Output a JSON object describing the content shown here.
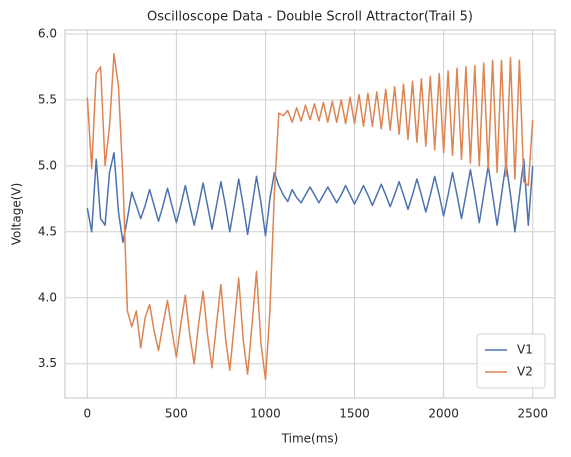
{
  "chart_data": {
    "type": "line",
    "title": "Oscilloscope Data - Double Scroll Attractor(Trail 5)",
    "xlabel": "Time(ms)",
    "ylabel": "Voltage(V)",
    "x": [
      0,
      25,
      50,
      75,
      100,
      125,
      150,
      175,
      200,
      225,
      250,
      275,
      300,
      325,
      350,
      375,
      400,
      425,
      450,
      475,
      500,
      525,
      550,
      575,
      600,
      625,
      650,
      675,
      700,
      725,
      750,
      775,
      800,
      825,
      850,
      875,
      900,
      925,
      950,
      975,
      1000,
      1025,
      1050,
      1075,
      1100,
      1125,
      1150,
      1175,
      1200,
      1225,
      1250,
      1275,
      1300,
      1325,
      1350,
      1375,
      1400,
      1425,
      1450,
      1475,
      1500,
      1525,
      1550,
      1575,
      1600,
      1625,
      1650,
      1675,
      1700,
      1725,
      1750,
      1775,
      1800,
      1825,
      1850,
      1875,
      1900,
      1925,
      1950,
      1975,
      2000,
      2025,
      2050,
      2075,
      2100,
      2125,
      2150,
      2175,
      2200,
      2225,
      2250,
      2275,
      2300,
      2325,
      2350,
      2375,
      2400,
      2425,
      2450,
      2475,
      2500
    ],
    "series": [
      {
        "name": "V1",
        "color": "#4c72b0",
        "values": [
          4.68,
          4.5,
          5.05,
          4.6,
          4.55,
          4.95,
          5.1,
          4.65,
          4.42,
          4.6,
          4.8,
          4.7,
          4.6,
          4.7,
          4.82,
          4.7,
          4.58,
          4.7,
          4.83,
          4.7,
          4.57,
          4.7,
          4.85,
          4.7,
          4.55,
          4.7,
          4.87,
          4.7,
          4.52,
          4.7,
          4.88,
          4.7,
          4.5,
          4.7,
          4.9,
          4.7,
          4.48,
          4.7,
          4.92,
          4.72,
          4.47,
          4.75,
          4.95,
          4.85,
          4.78,
          4.73,
          4.82,
          4.76,
          4.72,
          4.78,
          4.84,
          4.78,
          4.72,
          4.78,
          4.84,
          4.78,
          4.72,
          4.78,
          4.85,
          4.78,
          4.71,
          4.78,
          4.85,
          4.78,
          4.7,
          4.78,
          4.86,
          4.78,
          4.69,
          4.78,
          4.88,
          4.78,
          4.67,
          4.78,
          4.9,
          4.78,
          4.65,
          4.78,
          4.92,
          4.78,
          4.62,
          4.78,
          4.95,
          4.78,
          4.6,
          4.78,
          4.97,
          4.78,
          4.57,
          4.78,
          5.0,
          4.78,
          4.55,
          4.78,
          5.02,
          4.78,
          4.5,
          4.78,
          5.05,
          4.55,
          5.0
        ]
      },
      {
        "name": "V2",
        "color": "#dd8452",
        "values": [
          5.52,
          4.98,
          5.7,
          5.75,
          5.0,
          5.3,
          5.85,
          5.6,
          4.9,
          3.9,
          3.78,
          3.9,
          3.62,
          3.85,
          3.95,
          3.75,
          3.6,
          3.8,
          3.98,
          3.75,
          3.55,
          3.8,
          4.02,
          3.72,
          3.5,
          3.8,
          4.05,
          3.72,
          3.47,
          3.8,
          4.1,
          3.7,
          3.45,
          3.8,
          4.15,
          3.68,
          3.42,
          3.8,
          4.2,
          3.65,
          3.38,
          3.9,
          4.8,
          5.4,
          5.38,
          5.42,
          5.33,
          5.44,
          5.34,
          5.46,
          5.35,
          5.47,
          5.34,
          5.48,
          5.33,
          5.49,
          5.33,
          5.5,
          5.32,
          5.52,
          5.32,
          5.54,
          5.3,
          5.55,
          5.3,
          5.56,
          5.28,
          5.58,
          5.27,
          5.6,
          5.24,
          5.62,
          5.2,
          5.64,
          5.18,
          5.66,
          5.15,
          5.68,
          5.12,
          5.7,
          5.1,
          5.72,
          5.08,
          5.74,
          5.05,
          5.75,
          5.02,
          5.76,
          5.0,
          5.78,
          4.98,
          5.8,
          4.95,
          5.8,
          4.92,
          5.82,
          4.9,
          5.8,
          4.88,
          4.85,
          5.35
        ]
      }
    ],
    "xlim": [
      -125,
      2625
    ],
    "xticks": [
      0,
      500,
      1000,
      1500,
      2000,
      2500
    ],
    "ylim": [
      3.24,
      6.03
    ],
    "yticks": [
      3.5,
      {
        "value": 4,
        "label": "4.0"
      },
      4.5,
      {
        "value": 5,
        "label": "5.0"
      },
      5.5,
      {
        "value": 6,
        "label": "6.0"
      }
    ],
    "grid": true,
    "legend": "lower right"
  }
}
